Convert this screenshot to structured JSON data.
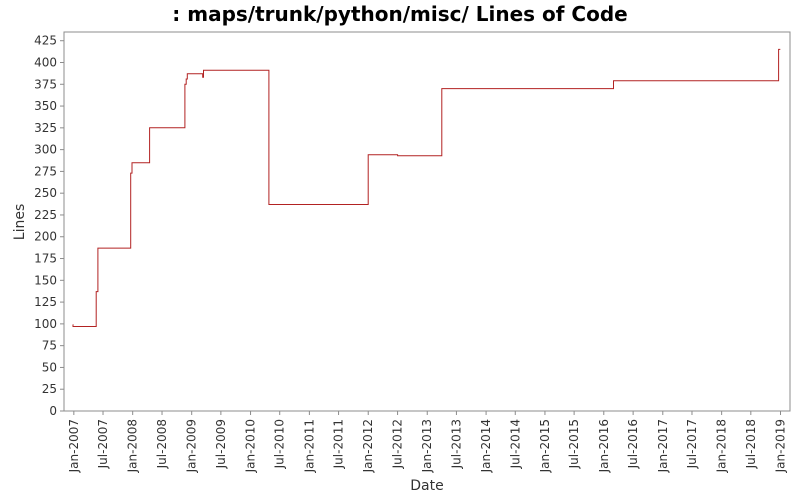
{
  "chart_data": {
    "type": "line",
    "title": ": maps/trunk/python/misc/ Lines of Code",
    "xlabel": "Date",
    "ylabel": "Lines",
    "ylim": [
      0,
      435
    ],
    "yticks": [
      0,
      25,
      50,
      75,
      100,
      125,
      150,
      175,
      200,
      225,
      250,
      275,
      300,
      325,
      350,
      375,
      400,
      425
    ],
    "xlim": [
      "2006-11-01",
      "2019-03-01"
    ],
    "xticks": [
      "2007-01-01",
      "2007-07-01",
      "2008-01-01",
      "2008-07-01",
      "2009-01-01",
      "2009-07-01",
      "2010-01-01",
      "2010-07-01",
      "2011-01-01",
      "2011-07-01",
      "2012-01-01",
      "2012-07-01",
      "2013-01-01",
      "2013-07-01",
      "2014-01-01",
      "2014-07-01",
      "2015-01-01",
      "2015-07-01",
      "2016-01-01",
      "2016-07-01",
      "2017-01-01",
      "2017-07-01",
      "2018-01-01",
      "2018-07-01",
      "2019-01-01"
    ],
    "xtick_labels": [
      "Jan-2007",
      "Jul-2007",
      "Jan-2008",
      "Jul-2008",
      "Jan-2009",
      "Jul-2009",
      "Jan-2010",
      "Jul-2010",
      "Jan-2011",
      "Jul-2011",
      "Jan-2012",
      "Jul-2012",
      "Jan-2013",
      "Jul-2013",
      "Jan-2014",
      "Jul-2014",
      "Jan-2015",
      "Jul-2015",
      "Jan-2016",
      "Jul-2016",
      "Jan-2017",
      "Jul-2017",
      "Jan-2018",
      "Jul-2018",
      "Jan-2019"
    ],
    "grid": false,
    "legend": "none",
    "line_color": "#b22222",
    "series": [
      {
        "step": true,
        "points": [
          [
            "2006-12-25",
            99
          ],
          [
            "2006-12-27",
            97
          ],
          [
            "2007-05-20",
            137
          ],
          [
            "2007-05-30",
            187
          ],
          [
            "2007-12-20",
            273
          ],
          [
            "2007-12-28",
            285
          ],
          [
            "2008-04-15",
            325
          ],
          [
            "2008-11-20",
            375
          ],
          [
            "2008-11-28",
            381
          ],
          [
            "2008-12-05",
            387
          ],
          [
            "2009-03-10",
            383
          ],
          [
            "2009-03-15",
            391
          ],
          [
            "2010-04-25",
            237
          ],
          [
            "2012-01-01",
            294
          ],
          [
            "2012-07-01",
            293
          ],
          [
            "2013-04-01",
            370
          ],
          [
            "2016-03-01",
            379
          ],
          [
            "2018-12-20",
            415
          ]
        ],
        "end": "2018-12-31"
      }
    ]
  }
}
